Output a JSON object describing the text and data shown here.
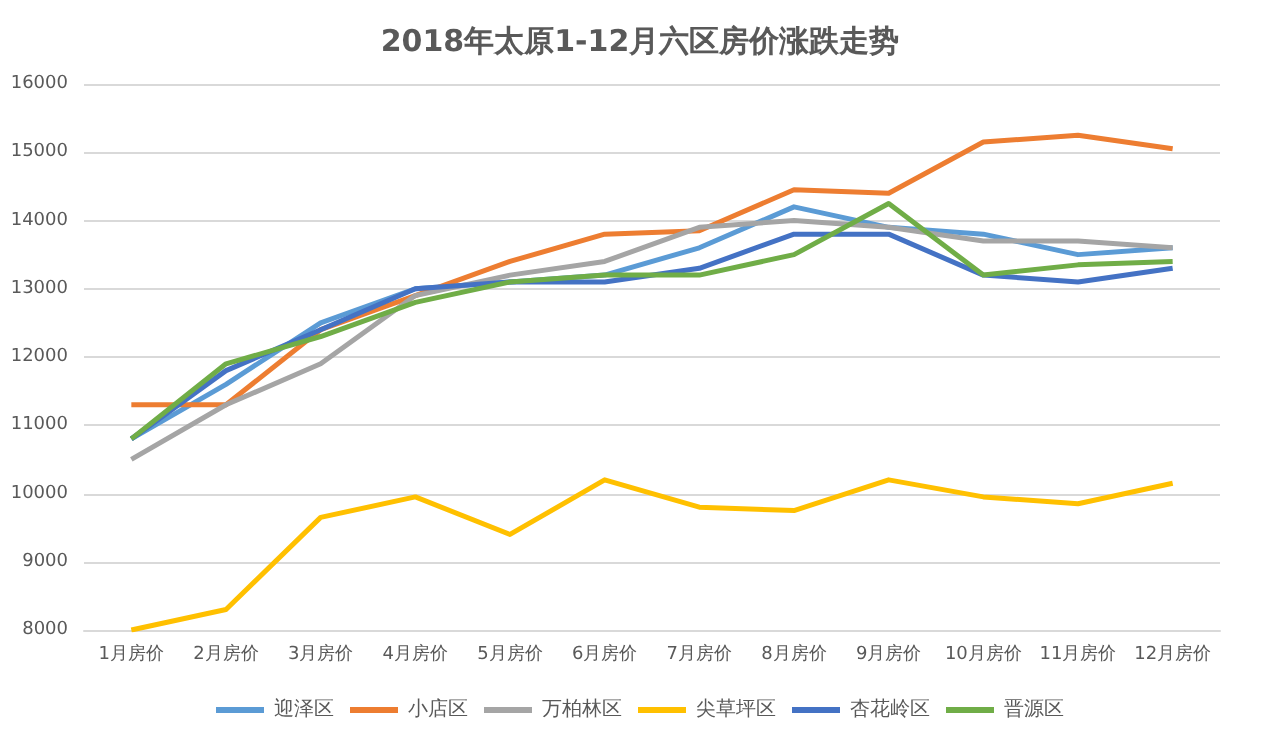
{
  "chart_data": {
    "type": "line",
    "title": "2018年太原1-12月六区房价涨跌走势",
    "categories": [
      "1月房价",
      "2月房价",
      "3月房价",
      "4月房价",
      "5月房价",
      "6月房价",
      "7月房价",
      "8月房价",
      "9月房价",
      "10月房价",
      "11月房价",
      "12月房价"
    ],
    "series": [
      {
        "name": "迎泽区",
        "color": "#5b9bd5",
        "values": [
          10800,
          11600,
          12500,
          13000,
          13100,
          13200,
          13600,
          14200,
          13900,
          13800,
          13500,
          13600
        ]
      },
      {
        "name": "小店区",
        "color": "#ed7d31",
        "values": [
          11300,
          11300,
          12400,
          12900,
          13400,
          13800,
          13850,
          14450,
          14400,
          15150,
          15250,
          15050
        ]
      },
      {
        "name": "万柏林区",
        "color": "#a5a5a5",
        "values": [
          10500,
          11300,
          11900,
          12900,
          13200,
          13400,
          13900,
          14000,
          13900,
          13700,
          13700,
          13600
        ]
      },
      {
        "name": "尖草坪区",
        "color": "#ffc000",
        "values": [
          8000,
          8300,
          9650,
          9950,
          9400,
          10200,
          9800,
          9750,
          10200,
          9950,
          9850,
          10150
        ]
      },
      {
        "name": "杏花岭区",
        "color": "#4472c4",
        "values": [
          10800,
          11800,
          12400,
          13000,
          13100,
          13100,
          13300,
          13800,
          13800,
          13200,
          13100,
          13300
        ]
      },
      {
        "name": "晋源区",
        "color": "#70ad47",
        "values": [
          10800,
          11900,
          12300,
          12800,
          13100,
          13200,
          13200,
          13500,
          14250,
          13200,
          13350,
          13400
        ]
      }
    ],
    "ylim": [
      8000,
      16000
    ],
    "yticks": [
      8000,
      9000,
      10000,
      11000,
      12000,
      13000,
      14000,
      15000,
      16000
    ],
    "grid": "y",
    "legend": "bottom",
    "marker": "none",
    "line_style": "solid"
  }
}
